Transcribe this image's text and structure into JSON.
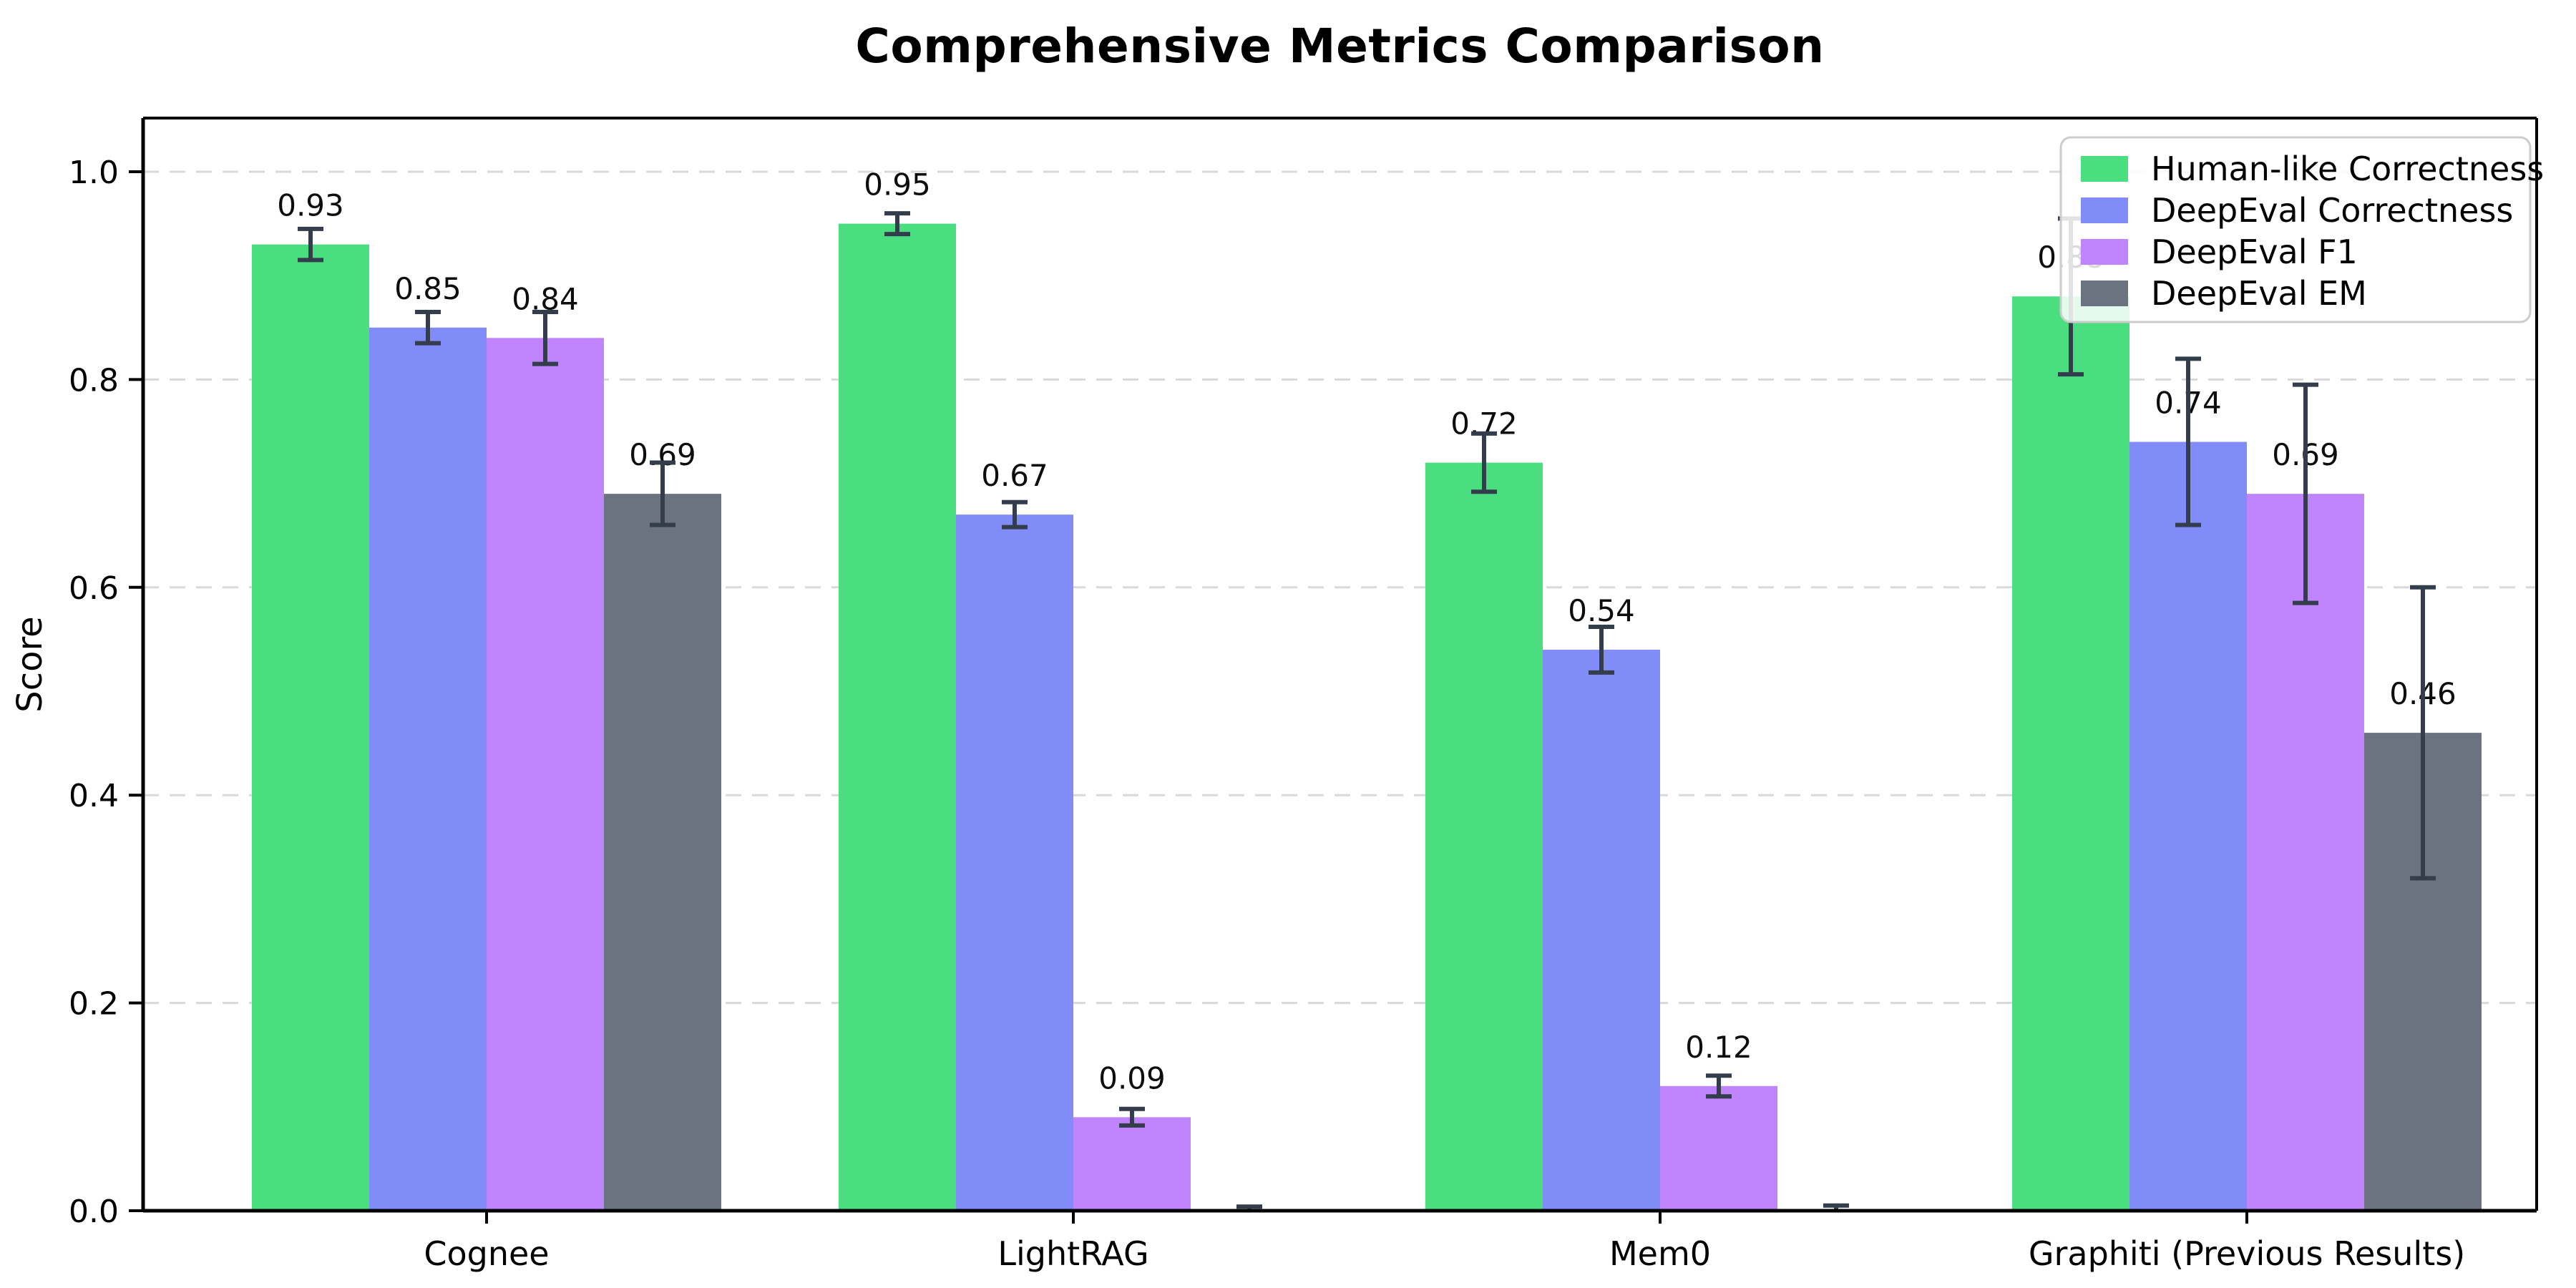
{
  "chart_data": {
    "type": "bar",
    "title": "Comprehensive Metrics Comparison",
    "xlabel": "",
    "ylabel": "Score",
    "categories": [
      "Cognee",
      "LightRAG",
      "Mem0",
      "Graphiti (Previous Results)"
    ],
    "series": [
      {
        "name": "Human-like Correctness",
        "color": "#4ade80",
        "values": [
          0.93,
          0.95,
          0.72,
          0.88
        ],
        "errors": [
          0.015,
          0.01,
          0.028,
          0.075
        ],
        "labels": [
          "0.93",
          "0.95",
          "0.72",
          "0.88"
        ]
      },
      {
        "name": "DeepEval Correctness",
        "color": "#818cf8",
        "values": [
          0.85,
          0.67,
          0.54,
          0.74
        ],
        "errors": [
          0.015,
          0.012,
          0.022,
          0.08
        ],
        "labels": [
          "0.85",
          "0.67",
          "0.54",
          "0.74"
        ]
      },
      {
        "name": "DeepEval F1",
        "color": "#c084fc",
        "values": [
          0.84,
          0.09,
          0.12,
          0.69
        ],
        "errors": [
          0.025,
          0.008,
          0.01,
          0.105
        ],
        "labels": [
          "0.84",
          "0.09",
          "0.12",
          "0.69"
        ]
      },
      {
        "name": "DeepEval EM",
        "color": "#6b7280",
        "values": [
          0.69,
          0.0,
          0.0,
          0.46
        ],
        "errors": [
          0.03,
          0.004,
          0.005,
          0.14
        ],
        "labels": [
          "0.69",
          "",
          "",
          "0.46"
        ]
      }
    ],
    "ylim": [
      0,
      1.05
    ],
    "yticks": [
      "0.0",
      "0.2",
      "0.4",
      "0.6",
      "0.8",
      "1.0"
    ],
    "grid": "horizontal-dashed",
    "grid_color": "#d9d9d9",
    "legend_position": "upper right",
    "legend_border_color": "#cccccc",
    "error_bar_color": "#333d4c",
    "axis_color": "#000000"
  }
}
